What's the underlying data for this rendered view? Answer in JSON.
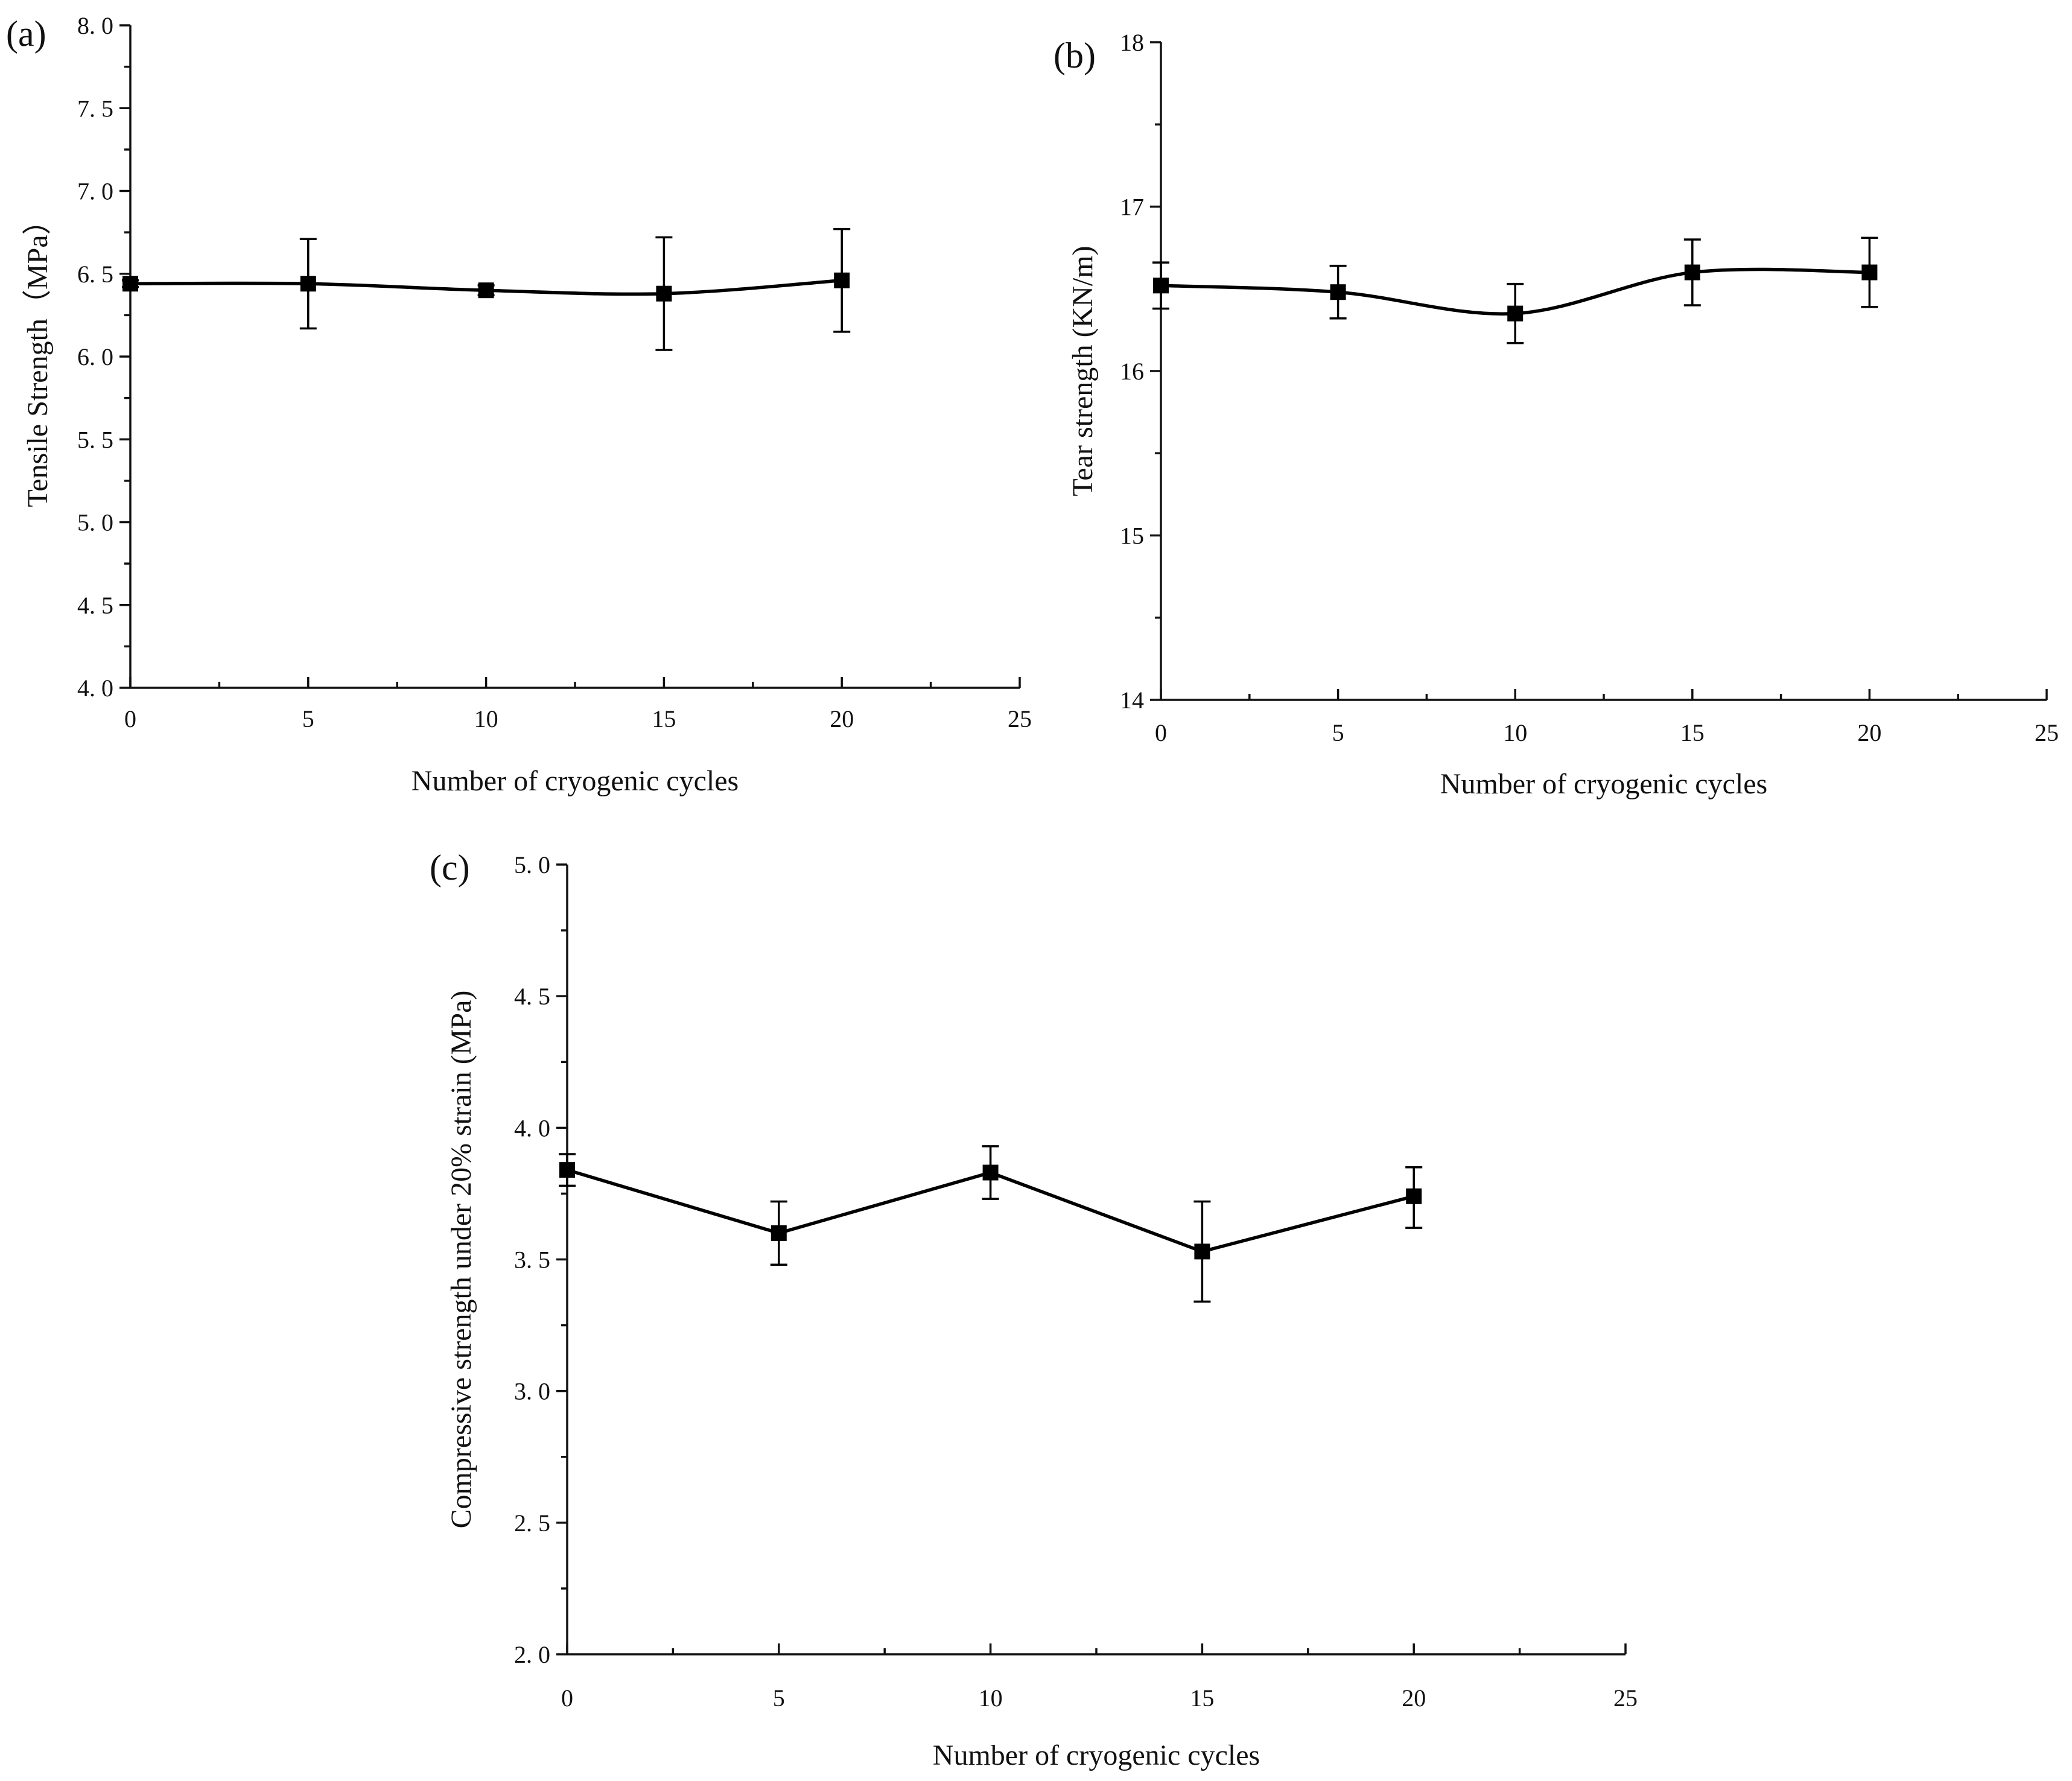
{
  "chart_data": [
    {
      "type": "line",
      "panel_label": "(a)",
      "title": "",
      "xlabel": "Number of cryogenic cycles",
      "ylabel": "Tensile Strength（MPa）",
      "xlim": [
        0,
        25
      ],
      "ylim": [
        4.0,
        8.0
      ],
      "x_ticks": [
        0,
        5,
        10,
        15,
        20,
        25
      ],
      "x_tick_labels": [
        "0",
        "5",
        "10",
        "15",
        "20",
        "25"
      ],
      "y_ticks": [
        4.0,
        4.5,
        5.0,
        5.5,
        6.0,
        6.5,
        7.0,
        7.5,
        8.0
      ],
      "y_tick_labels": [
        "4. 0",
        "4. 5",
        "5. 0",
        "5. 5",
        "6. 0",
        "6. 5",
        "7. 0",
        "7. 5",
        "8. 0"
      ],
      "x_minor_step": 2.5,
      "y_minor_step": 0.25,
      "smooth": true,
      "grid": false,
      "series": [
        {
          "name": "Tensile strength",
          "x": [
            0,
            5,
            10,
            15,
            20
          ],
          "y": [
            6.44,
            6.44,
            6.4,
            6.38,
            6.46
          ],
          "err_low": [
            0.02,
            0.27,
            0.03,
            0.34,
            0.31
          ],
          "err_high": [
            0.02,
            0.27,
            0.03,
            0.34,
            0.31
          ]
        }
      ]
    },
    {
      "type": "line",
      "panel_label": "(b)",
      "title": "",
      "xlabel": "Number of cryogenic cycles",
      "ylabel": "Tear strength (KN/m)",
      "xlim": [
        0,
        25
      ],
      "ylim": [
        14,
        18
      ],
      "x_ticks": [
        0,
        5,
        10,
        15,
        20,
        25
      ],
      "x_tick_labels": [
        "0",
        "5",
        "10",
        "15",
        "20",
        "25"
      ],
      "y_ticks": [
        14,
        15,
        16,
        17,
        18
      ],
      "y_tick_labels": [
        "14",
        "15",
        "16",
        "17",
        "18"
      ],
      "x_minor_step": 2.5,
      "y_minor_step": 0.5,
      "smooth": true,
      "grid": false,
      "series": [
        {
          "name": "Tear strength",
          "x": [
            0,
            5,
            10,
            15,
            20
          ],
          "y": [
            16.52,
            16.48,
            16.35,
            16.6,
            16.6
          ],
          "err_low": [
            0.14,
            0.16,
            0.18,
            0.2,
            0.21
          ],
          "err_high": [
            0.14,
            0.16,
            0.18,
            0.2,
            0.21
          ]
        }
      ]
    },
    {
      "type": "line",
      "panel_label": "(c)",
      "title": "",
      "xlabel": "Number of cryogenic cycles",
      "ylabel": "Compressive strength under 20% strain (MPa)",
      "xlim": [
        0,
        25
      ],
      "ylim": [
        2.0,
        5.0
      ],
      "x_ticks": [
        0,
        5,
        10,
        15,
        20,
        25
      ],
      "x_tick_labels": [
        "0",
        "5",
        "10",
        "15",
        "20",
        "25"
      ],
      "y_ticks": [
        2.0,
        2.5,
        3.0,
        3.5,
        4.0,
        4.5,
        5.0
      ],
      "y_tick_labels": [
        "2. 0",
        "2. 5",
        "3. 0",
        "3. 5",
        "4. 0",
        "4. 5",
        "5. 0"
      ],
      "x_minor_step": 2.5,
      "y_minor_step": 0.25,
      "smooth": false,
      "grid": false,
      "series": [
        {
          "name": "Compressive strength under 20% strain",
          "x": [
            0,
            5,
            10,
            15,
            20
          ],
          "y": [
            3.84,
            3.6,
            3.83,
            3.53,
            3.74
          ],
          "err_low": [
            0.06,
            0.12,
            0.1,
            0.19,
            0.12
          ],
          "err_high": [
            0.06,
            0.12,
            0.1,
            0.19,
            0.11
          ]
        }
      ]
    }
  ]
}
